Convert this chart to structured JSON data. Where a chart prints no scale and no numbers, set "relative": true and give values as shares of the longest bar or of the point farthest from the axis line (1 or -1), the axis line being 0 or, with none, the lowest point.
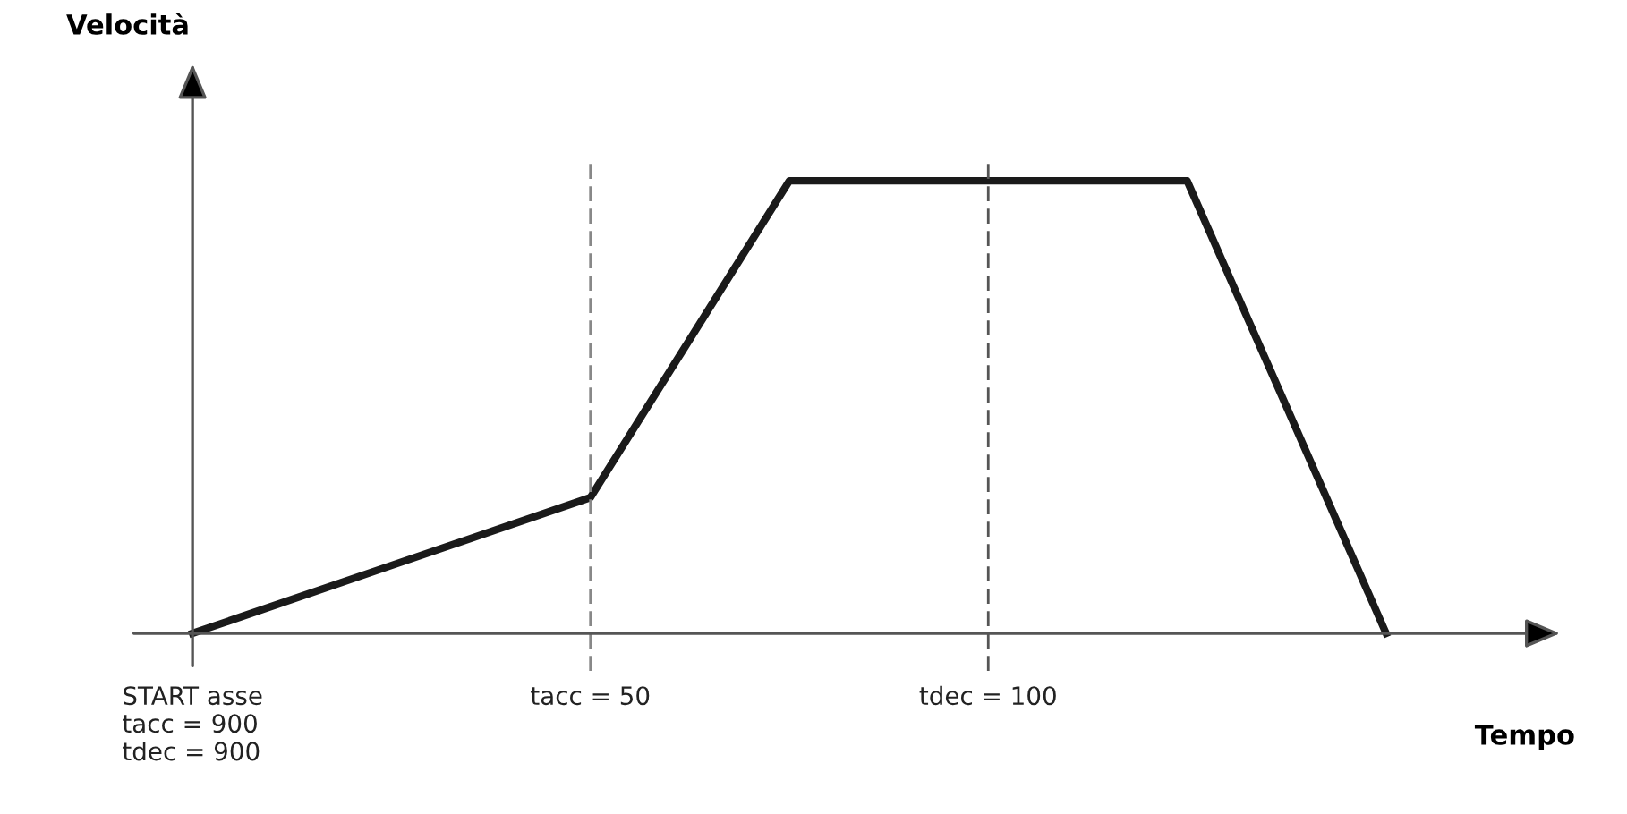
{
  "chart_data": {
    "type": "line",
    "relative": true,
    "xlabel": "Tempo",
    "annotations": [
      "Velocità"
    ],
    "categories": [
      "START asse\ntacc = 900\ntdec = 900",
      null,
      "tacc = 50",
      null,
      "tdec = 100",
      null,
      null
    ],
    "series": [
      {
        "color": "#1a1a1a",
        "values": [
          0,
          0.15,
          0.3,
          1,
          1,
          1,
          0
        ]
      }
    ],
    "tick_labels": "x",
    "grid": false,
    "legend": false,
    "marker": "none",
    "line_style": "solid",
    "ref_lines": [
      {
        "axis": "x",
        "value": "tacc = 50",
        "color": "#888888",
        "line_style": "dashed"
      },
      {
        "axis": "x",
        "value": "tdec = 100",
        "color": "#555555",
        "line_style": "dashed"
      }
    ]
  }
}
